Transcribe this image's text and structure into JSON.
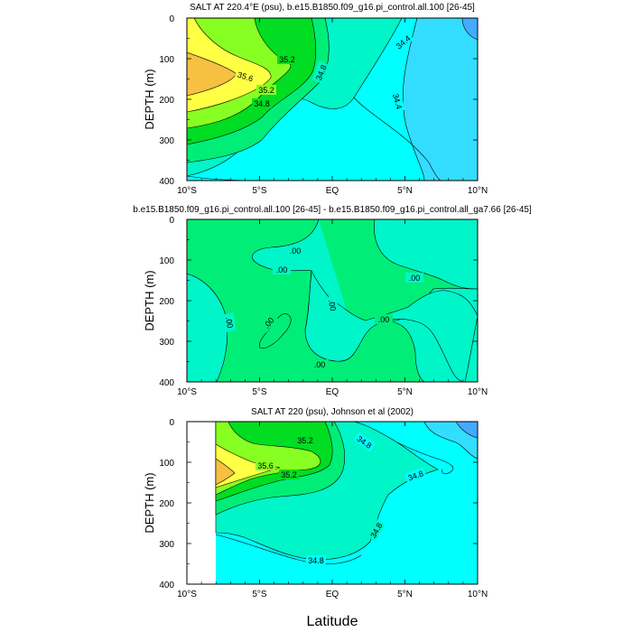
{
  "chart_data": [
    {
      "type": "contour",
      "title": "SALT AT 220.4°E (psu), b.e15.B1850.f09_g16.pi_control.all.100 [26-45]",
      "ylabel": "DEPTH (m)",
      "xlabel": "",
      "x_ticks": [
        "10°S",
        "5°S",
        "EQ",
        "5°N",
        "10°N"
      ],
      "x_tick_values": [
        -10,
        -5,
        0,
        5,
        10
      ],
      "y_ticks": [
        "0",
        "100",
        "200",
        "300",
        "400"
      ],
      "y_tick_values": [
        0,
        100,
        200,
        300,
        400
      ],
      "xlim": [
        -10,
        10
      ],
      "ylim": [
        400,
        0
      ],
      "contour_labels": [
        "35.2",
        "35.6",
        "35.2",
        "34.8",
        "34.8",
        "34.4",
        "34.4"
      ]
    },
    {
      "type": "contour",
      "title": "b.e15.B1850.f09_g16.pi_control.all.100 [26-45] - b.e15.B1850.f09_g16.pi_control.all_ga7.66 [26-45]",
      "ylabel": "DEPTH (m)",
      "xlabel": "",
      "x_ticks": [
        "10°S",
        "5°S",
        "EQ",
        "5°N",
        "10°N"
      ],
      "x_tick_values": [
        -10,
        -5,
        0,
        5,
        10
      ],
      "y_ticks": [
        "0",
        "100",
        "200",
        "300",
        "400"
      ],
      "y_tick_values": [
        0,
        100,
        200,
        300,
        400
      ],
      "xlim": [
        -10,
        10
      ],
      "ylim": [
        400,
        0
      ],
      "contour_labels": [
        ".00",
        ".00",
        ".00",
        ".00",
        ".00",
        ".00",
        ".00",
        ".00"
      ]
    },
    {
      "type": "contour",
      "title": "SALT AT 220 (psu), Johnson et al (2002)",
      "ylabel": "DEPTH (m)",
      "xlabel": "Latitude",
      "x_ticks": [
        "10°S",
        "5°S",
        "EQ",
        "5°N",
        "10°N"
      ],
      "x_tick_values": [
        -10,
        -5,
        0,
        5,
        10
      ],
      "y_ticks": [
        "0",
        "100",
        "200",
        "300",
        "400"
      ],
      "y_tick_values": [
        0,
        100,
        200,
        300,
        400
      ],
      "xlim": [
        -10,
        10
      ],
      "ylim": [
        400,
        0
      ],
      "data_x_range": [
        -8,
        10
      ],
      "contour_labels": [
        "35.2",
        "35.6",
        "35.2",
        "34.8",
        "34.8",
        "34.8",
        "34.8"
      ]
    }
  ],
  "colors": {
    "c344": "#33ddff",
    "c346": "#00ffff",
    "c348": "#00f5c8",
    "c350": "#00ee77",
    "c352": "#00dd22",
    "c354": "#88ff22",
    "c356": "#ffff44",
    "c358": "#f7c040",
    "c333": "#44aaff",
    "diffPos": "#00ee77",
    "diffNeg": "#00f5c8"
  }
}
